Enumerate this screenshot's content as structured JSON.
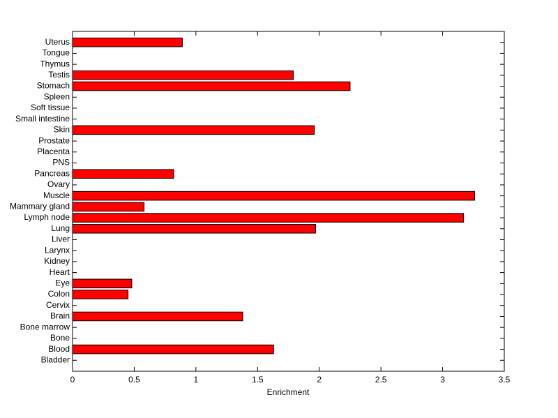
{
  "chart_data": {
    "type": "barh",
    "xlabel": "Enrichment",
    "categories": [
      "Bladder",
      "Blood",
      "Bone",
      "Bone marrow",
      "Brain",
      "Cervix",
      "Colon",
      "Eye",
      "Heart",
      "Kidney",
      "Larynx",
      "Liver",
      "Lung",
      "Lymph node",
      "Mammary gland",
      "Muscle",
      "Ovary",
      "Pancreas",
      "PNS",
      "Placenta",
      "Prostate",
      "Skin",
      "Small intestine",
      "Soft tissue",
      "Spleen",
      "Stomach",
      "Testis",
      "Thymus",
      "Tongue",
      "Uterus"
    ],
    "values": [
      0,
      1.63,
      0,
      0,
      1.38,
      0,
      0.45,
      0.48,
      0,
      0,
      0,
      0,
      1.97,
      3.17,
      0.58,
      3.26,
      0,
      0.82,
      0,
      0,
      0,
      1.96,
      0,
      0,
      0,
      2.25,
      1.79,
      0,
      0,
      0.89
    ],
    "color": "#ff0000",
    "xlim": [
      0,
      3.5
    ],
    "xticks": [
      0,
      0.5,
      1,
      1.5,
      2,
      2.5,
      3,
      3.5
    ]
  }
}
